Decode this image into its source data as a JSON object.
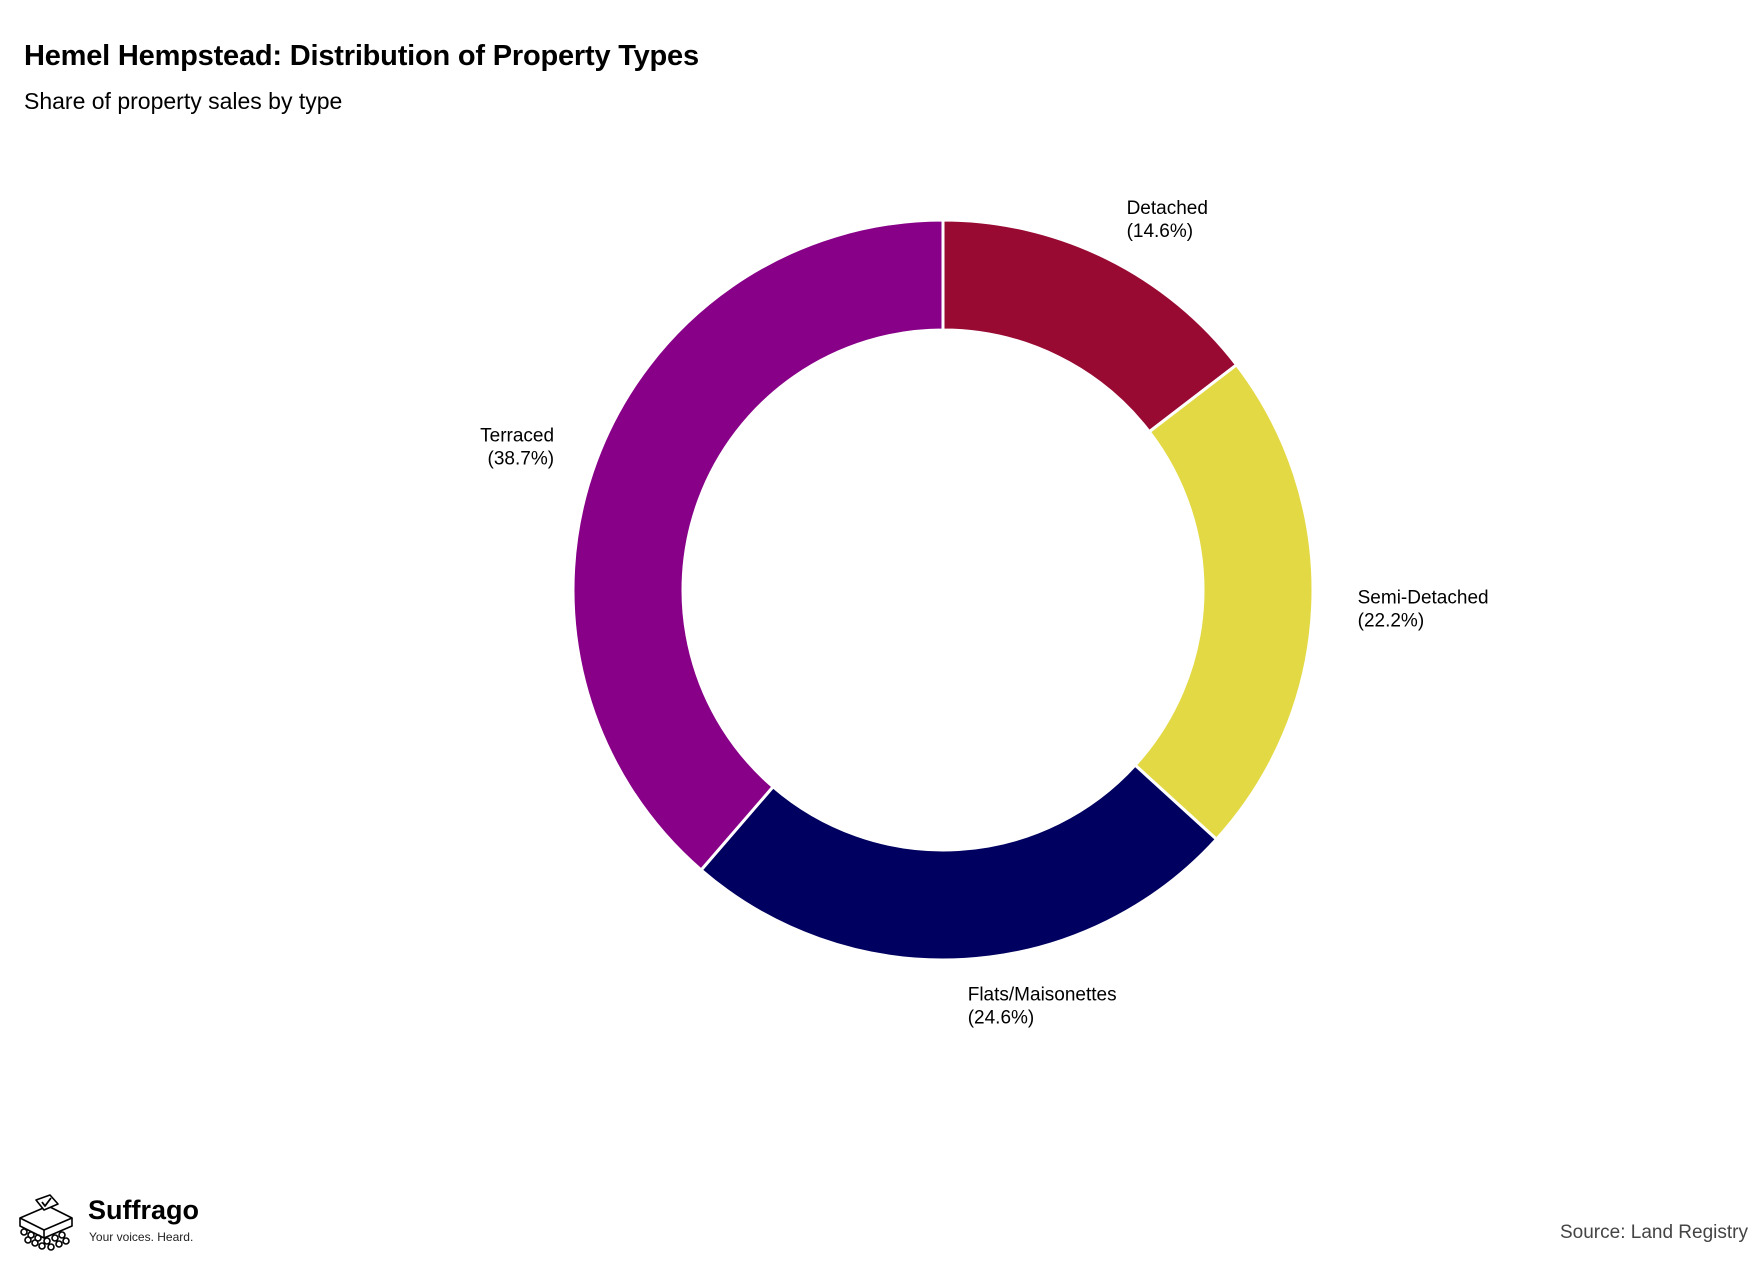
{
  "header": {
    "title": "Hemel Hempstead: Distribution of Property Types",
    "subtitle": "Share of property sales by type"
  },
  "chart_data": {
    "type": "pie",
    "variant": "donut",
    "title": "Hemel Hempstead: Distribution of Property Types",
    "subtitle": "Share of property sales by type",
    "start": "12 o'clock",
    "direction": "clockwise",
    "slices": [
      {
        "label": "Detached",
        "value": 14.6,
        "value_label": "(14.6%)",
        "color": "#990a33"
      },
      {
        "label": "Semi-Detached",
        "value": 22.2,
        "value_label": "(22.2%)",
        "color": "#e3d945"
      },
      {
        "label": "Flats/Maisonettes",
        "value": 24.6,
        "value_label": "(24.6%)",
        "color": "#000060"
      },
      {
        "label": "Terraced",
        "value": 38.7,
        "value_label": "(38.7%)",
        "color": "#880088"
      }
    ],
    "slice_border_color": "#ffffff",
    "legend": "none"
  },
  "footer": {
    "brand_name": "Suffrago",
    "brand_tagline": "Your voices. Heard.",
    "logo_icon": "ballot-box-crowd-icon",
    "source": "Source: Land Registry"
  }
}
